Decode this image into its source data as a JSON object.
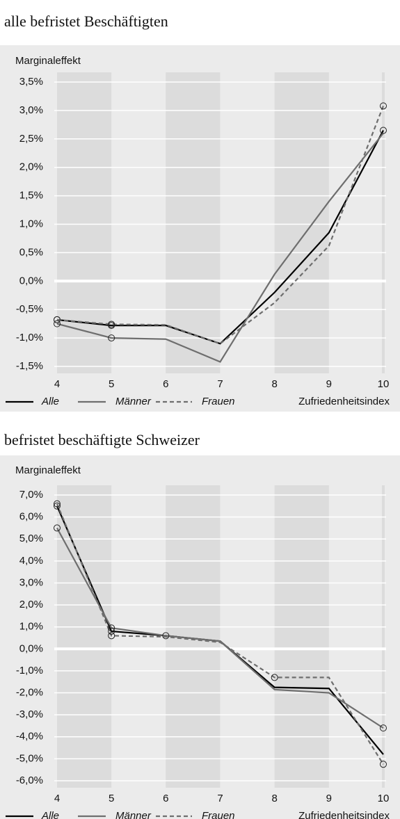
{
  "chart_data": [
    {
      "type": "line",
      "title": "alle befristet Beschäftigten",
      "y_label": "Marginaleffekt",
      "x_label": "Zufriedenheitsindex",
      "x": [
        4,
        5,
        6,
        7,
        8,
        9,
        10
      ],
      "xlim": [
        4,
        10
      ],
      "xticks": [
        4,
        5,
        6,
        7,
        8,
        9,
        10
      ],
      "ylim": [
        -1.5,
        3.5
      ],
      "yticks": [
        {
          "value": -1.5,
          "label": "-1,5%"
        },
        {
          "value": -1.0,
          "label": "-1,0%"
        },
        {
          "value": -0.5,
          "label": "-0,5%"
        },
        {
          "value": 0,
          "label": "0,0%"
        },
        {
          "value": 0.5,
          "label": "0,5%"
        },
        {
          "value": 1.0,
          "label": "1,0%"
        },
        {
          "value": 1.5,
          "label": "1,5%"
        },
        {
          "value": 2.0,
          "label": "2,0%"
        },
        {
          "value": 2.5,
          "label": "2,5%"
        },
        {
          "value": 3.0,
          "label": "3,0%"
        },
        {
          "value": 3.5,
          "label": "3,5%"
        }
      ],
      "grid": true,
      "series": [
        {
          "name": "Alle",
          "color": "#000000",
          "dash": false,
          "values": [
            -0.68,
            -0.78,
            -0.78,
            -1.1,
            -0.2,
            0.85,
            2.65
          ],
          "markers": [
            0,
            1,
            6
          ]
        },
        {
          "name": "Männer",
          "color": "#6e6e6e",
          "dash": false,
          "values": [
            -0.75,
            -1.0,
            -1.02,
            -1.42,
            0.12,
            1.4,
            2.6
          ],
          "markers": [
            0,
            1
          ]
        },
        {
          "name": "Frauen",
          "color": "#6e6e6e",
          "dash": true,
          "values": [
            -0.68,
            -0.76,
            -0.77,
            -1.1,
            -0.38,
            0.62,
            3.08
          ],
          "markers": [
            0,
            1,
            6
          ]
        }
      ]
    },
    {
      "type": "line",
      "title": "befristet beschäftigte Schweizer",
      "y_label": "Marginaleffekt",
      "x_label": "Zufriedenheitsindex",
      "x": [
        4,
        5,
        6,
        7,
        8,
        9,
        10
      ],
      "xlim": [
        4,
        10
      ],
      "xticks": [
        4,
        5,
        6,
        7,
        8,
        9,
        10
      ],
      "ylim": [
        -6,
        7
      ],
      "yticks": [
        {
          "value": -6,
          "label": "-6,0%"
        },
        {
          "value": -5,
          "label": "-5,0%"
        },
        {
          "value": -4,
          "label": "-4,0%"
        },
        {
          "value": -3,
          "label": "-3,0%"
        },
        {
          "value": -2,
          "label": "-2,0%"
        },
        {
          "value": -1,
          "label": "-1,0%"
        },
        {
          "value": 0,
          "label": "0,0%"
        },
        {
          "value": 1,
          "label": "1,0%"
        },
        {
          "value": 2,
          "label": "2,0%"
        },
        {
          "value": 3,
          "label": "3,0%"
        },
        {
          "value": 4,
          "label": "4,0%"
        },
        {
          "value": 5,
          "label": "5,0%"
        },
        {
          "value": 6,
          "label": "6,0%"
        },
        {
          "value": 7,
          "label": "7,0%"
        }
      ],
      "grid": true,
      "series": [
        {
          "name": "Alle",
          "color": "#000000",
          "dash": false,
          "values": [
            6.5,
            0.8,
            0.6,
            0.35,
            -1.75,
            -1.8,
            -4.8
          ],
          "markers": [
            0,
            1,
            2
          ]
        },
        {
          "name": "Männer",
          "color": "#6e6e6e",
          "dash": false,
          "values": [
            5.5,
            0.95,
            0.6,
            0.35,
            -1.85,
            -2.0,
            -3.6
          ],
          "markers": [
            0,
            1,
            6
          ]
        },
        {
          "name": "Frauen",
          "color": "#6e6e6e",
          "dash": true,
          "values": [
            6.6,
            0.6,
            0.55,
            0.3,
            -1.3,
            -1.3,
            -5.25
          ],
          "markers": [
            0,
            1,
            4,
            6
          ]
        }
      ]
    }
  ]
}
